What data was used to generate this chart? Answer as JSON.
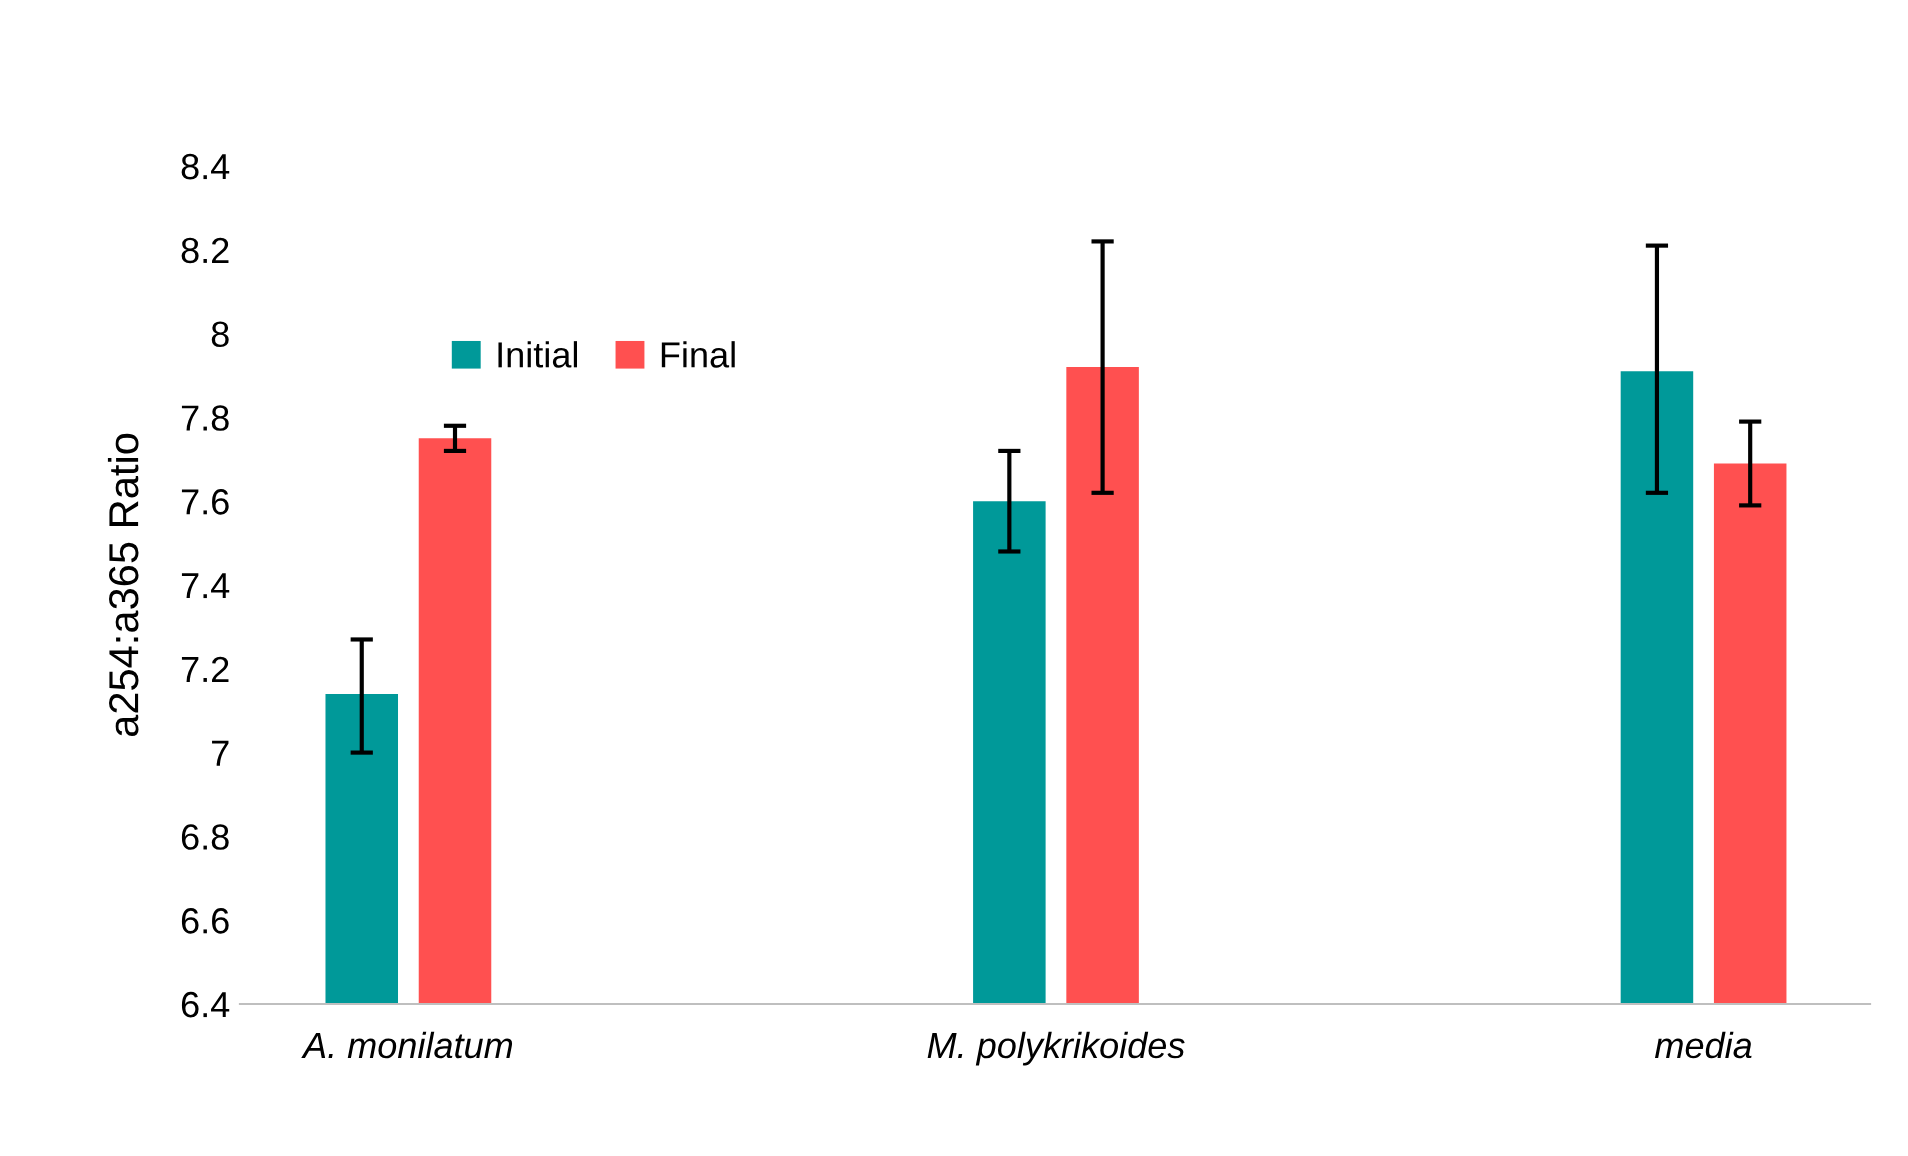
{
  "chart_data": {
    "type": "bar",
    "ylabel": "a254:a365 Ratio",
    "categories": [
      "A. monilatum",
      "M. polykrikoides",
      "media"
    ],
    "series": [
      {
        "name": "Initial",
        "color": "#009999",
        "values": [
          7.14,
          7.6,
          7.91
        ],
        "errors": [
          [
            7.0,
            7.27
          ],
          [
            7.48,
            7.72
          ],
          [
            7.62,
            8.21
          ]
        ]
      },
      {
        "name": "Final",
        "color": "#ff5050",
        "values": [
          7.75,
          7.92,
          7.69
        ],
        "errors": [
          [
            7.72,
            7.78
          ],
          [
            7.62,
            8.22
          ],
          [
            7.59,
            7.79
          ]
        ]
      }
    ],
    "ylim": [
      6.4,
      8.4
    ],
    "yticks": [
      6.4,
      6.6,
      6.8,
      7,
      7.2,
      7.4,
      7.6,
      7.8,
      8,
      8.2,
      8.4
    ],
    "grid": false,
    "legend": "top left"
  }
}
